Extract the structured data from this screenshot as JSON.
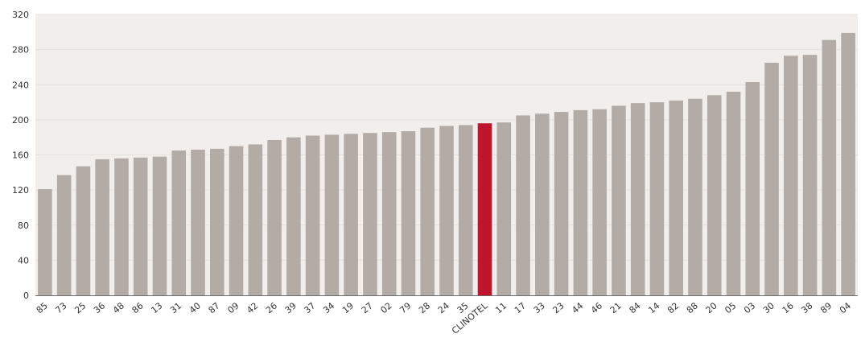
{
  "chart_data": {
    "type": "bar",
    "title": "",
    "xlabel": "",
    "ylabel": "",
    "ylim": [
      0,
      320
    ],
    "yticks": [
      0,
      40,
      80,
      120,
      160,
      200,
      240,
      280,
      320
    ],
    "grid": true,
    "legend": "none",
    "categories": [
      "85",
      "73",
      "25",
      "36",
      "48",
      "86",
      "13",
      "31",
      "40",
      "87",
      "09",
      "42",
      "26",
      "39",
      "37",
      "34",
      "19",
      "27",
      "02",
      "79",
      "28",
      "24",
      "35",
      "CLINOTEL",
      "11",
      "17",
      "33",
      "23",
      "44",
      "46",
      "21",
      "84",
      "14",
      "82",
      "88",
      "20",
      "05",
      "03",
      "30",
      "16",
      "38",
      "89",
      "04"
    ],
    "values": [
      121,
      137,
      147,
      155,
      156,
      157,
      158,
      165,
      166,
      167,
      170,
      172,
      177,
      180,
      182,
      183,
      184,
      185,
      186,
      187,
      191,
      193,
      194,
      196,
      197,
      205,
      207,
      209,
      211,
      212,
      216,
      219,
      220,
      222,
      224,
      228,
      232,
      243,
      265,
      273,
      274,
      291,
      299
    ],
    "highlight_category": "CLINOTEL",
    "colors": {
      "bar": "#b3aca6",
      "highlight": "#c0152f",
      "plot_background": "#f2eeeb",
      "grid": "#e7e1dc",
      "axis": "#6b6b6b"
    }
  }
}
